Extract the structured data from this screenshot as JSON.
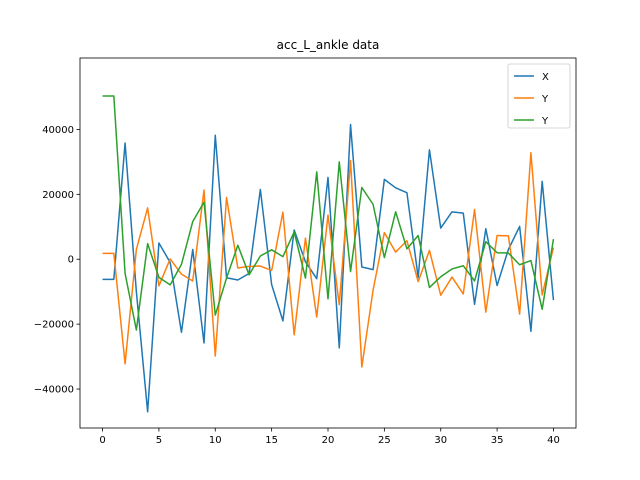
{
  "chart_data": {
    "type": "line",
    "title": "acc_L_ankle data",
    "xlabel": "",
    "ylabel": "",
    "xlim": [
      -2,
      42
    ],
    "ylim": [
      -52000,
      62000
    ],
    "grid": false,
    "legend_position": "upper right",
    "x": [
      0,
      1,
      2,
      3,
      4,
      5,
      6,
      7,
      8,
      9,
      10,
      11,
      12,
      13,
      14,
      15,
      16,
      17,
      18,
      19,
      20,
      21,
      22,
      23,
      24,
      25,
      26,
      27,
      28,
      29,
      30,
      31,
      32,
      33,
      34,
      35,
      36,
      37,
      38,
      39,
      40
    ],
    "x_ticks": [
      0,
      5,
      10,
      15,
      20,
      25,
      30,
      35,
      40
    ],
    "x_tick_labels": [
      "0",
      "5",
      "10",
      "15",
      "20",
      "25",
      "30",
      "35",
      "40"
    ],
    "y_ticks": [
      -40000,
      -20000,
      0,
      20000,
      40000
    ],
    "y_tick_labels": [
      "−40000",
      "−20000",
      "0",
      "20000",
      "40000"
    ],
    "series": [
      {
        "name": "X",
        "color": "#1f77b4",
        "values": [
          -6200,
          -6200,
          35800,
          -10000,
          -47000,
          5000,
          -1000,
          -22500,
          3000,
          -25800,
          38200,
          -5700,
          -6400,
          -4400,
          21500,
          -7800,
          -19000,
          9000,
          -800,
          -6000,
          25200,
          -27300,
          41500,
          -2400,
          -3200,
          24600,
          22000,
          20500,
          -5600,
          33700,
          9600,
          14600,
          14200,
          -13900,
          9400,
          -8100,
          3000,
          10100,
          -22200,
          24000,
          -12600
        ]
      },
      {
        "name": "Y",
        "color": "#ff7f0e",
        "values": [
          1800,
          1800,
          -32200,
          3000,
          15800,
          -8200,
          100,
          -4600,
          -6700,
          21300,
          -29800,
          19000,
          -2700,
          -2200,
          -2100,
          -3500,
          14500,
          -23300,
          6500,
          -17800,
          13600,
          -14000,
          30400,
          -33200,
          -9500,
          8200,
          2200,
          5700,
          -6900,
          2700,
          -11100,
          -5500,
          -10700,
          15300,
          -16300,
          7300,
          7200,
          -16900,
          32800,
          -11000,
          3600
        ]
      },
      {
        "name": "Y",
        "color": "#2ca02c",
        "values": [
          50300,
          50300,
          -4400,
          -21800,
          4800,
          -5600,
          -7900,
          -1600,
          11600,
          17600,
          -17200,
          -5800,
          4300,
          -4800,
          1000,
          2900,
          800,
          8400,
          -5800,
          26900,
          -12200,
          30000,
          -3800,
          22100,
          16900,
          500,
          14600,
          3200,
          7300,
          -8700,
          -5400,
          -3000,
          -2000,
          -6700,
          5400,
          2000,
          1900,
          -1700,
          -400,
          -15400,
          6200
        ]
      }
    ]
  }
}
